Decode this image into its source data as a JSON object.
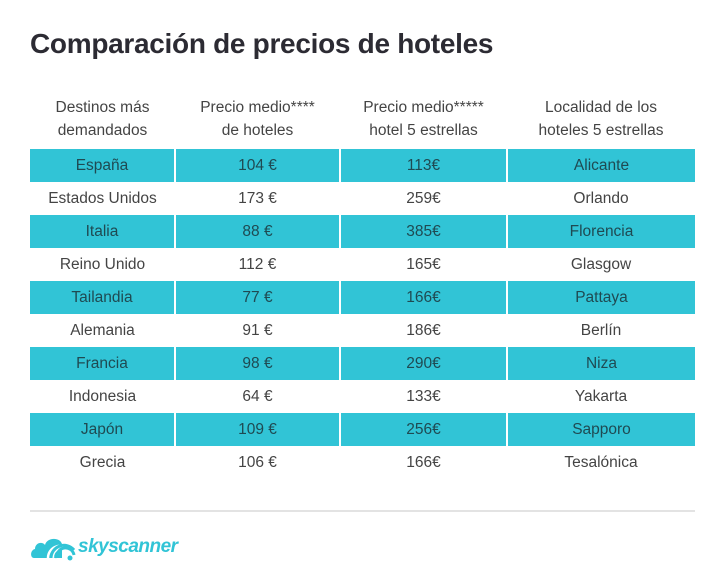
{
  "title": "Comparación de precios de hoteles",
  "table": {
    "headers": [
      [
        "Destinos más",
        "demandados"
      ],
      [
        "Precio medio****",
        "de hoteles"
      ],
      [
        "Precio medio*****",
        "hotel 5 estrellas"
      ],
      [
        "Localidad de los",
        "hoteles 5 estrellas"
      ]
    ],
    "rows": [
      [
        "España",
        "104 €",
        "113€",
        "Alicante"
      ],
      [
        "Estados Unidos",
        "173 €",
        "259€",
        "Orlando"
      ],
      [
        "Italia",
        "88 €",
        "385€",
        "Florencia"
      ],
      [
        "Reino Unido",
        "112 €",
        "165€",
        "Glasgow"
      ],
      [
        "Tailandia",
        "77 €",
        "166€",
        "Pattaya"
      ],
      [
        "Alemania",
        "91 €",
        "186€",
        "Berlín"
      ],
      [
        "Francia",
        "98 €",
        "290€",
        "Niza"
      ],
      [
        "Indonesia",
        "64 €",
        "133€",
        "Yakarta"
      ],
      [
        "Japón",
        "109 €",
        "256€",
        "Sapporo"
      ],
      [
        "Grecia",
        "106 €",
        "166€",
        "Tesalónica"
      ]
    ]
  },
  "logo": {
    "text": "skyscanner",
    "icon": "skyscanner-cloud-icon"
  },
  "colors": {
    "accent": "#31c4d6",
    "title": "#2c2b33"
  }
}
